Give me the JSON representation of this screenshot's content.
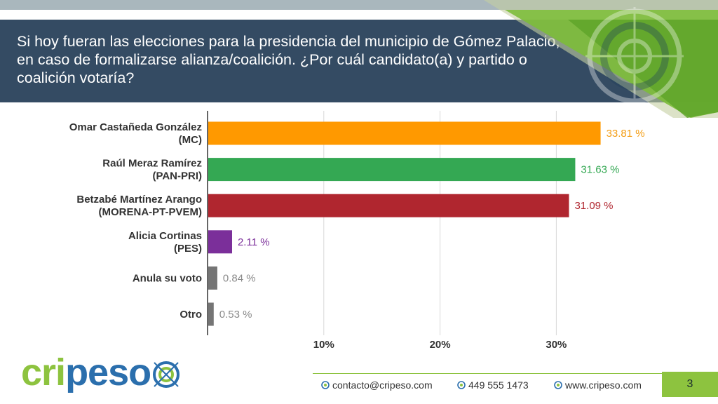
{
  "title": "Si hoy fueran las elecciones para la presidencia del municipio de Gómez Palacio, en caso de formalizarse alianza/coalición. ¿Por cuál candidato(a) y partido o coalición votaría?",
  "chart_data": {
    "type": "bar",
    "orientation": "horizontal",
    "categories": [
      [
        "Omar Castañeda González",
        "(MC)"
      ],
      [
        "Raúl Meraz Ramírez",
        "(PAN-PRI)"
      ],
      [
        "Betzabé Martínez Arango",
        "(MORENA-PT-PVEM)"
      ],
      [
        "Alicia Cortinas",
        "(PES)"
      ],
      [
        "Anula su voto"
      ],
      [
        "Otro"
      ]
    ],
    "values": [
      33.81,
      31.63,
      31.09,
      2.11,
      0.84,
      0.53
    ],
    "value_labels": [
      "33.81 %",
      "31.63 %",
      "31.09 %",
      "2.11 %",
      "0.84 %",
      "0.53 %"
    ],
    "colors": [
      "#ff9900",
      "#34a853",
      "#b0262f",
      "#7b2f9a",
      "#757575",
      "#757575"
    ],
    "label_colors": [
      "#f39c12",
      "#34a853",
      "#b0262f",
      "#7b2f9a",
      "#8a8a8a",
      "#8a8a8a"
    ],
    "xticks": [
      10,
      20,
      30
    ],
    "xtick_labels": [
      "10%",
      "20%",
      "30%"
    ],
    "xlim": [
      0,
      40
    ],
    "grid": true
  },
  "footer": {
    "logo": "cripeso",
    "email": "contacto@cripeso.com",
    "phone": "449 555 1473",
    "website": "www.cripeso.com",
    "page_number": "3"
  }
}
